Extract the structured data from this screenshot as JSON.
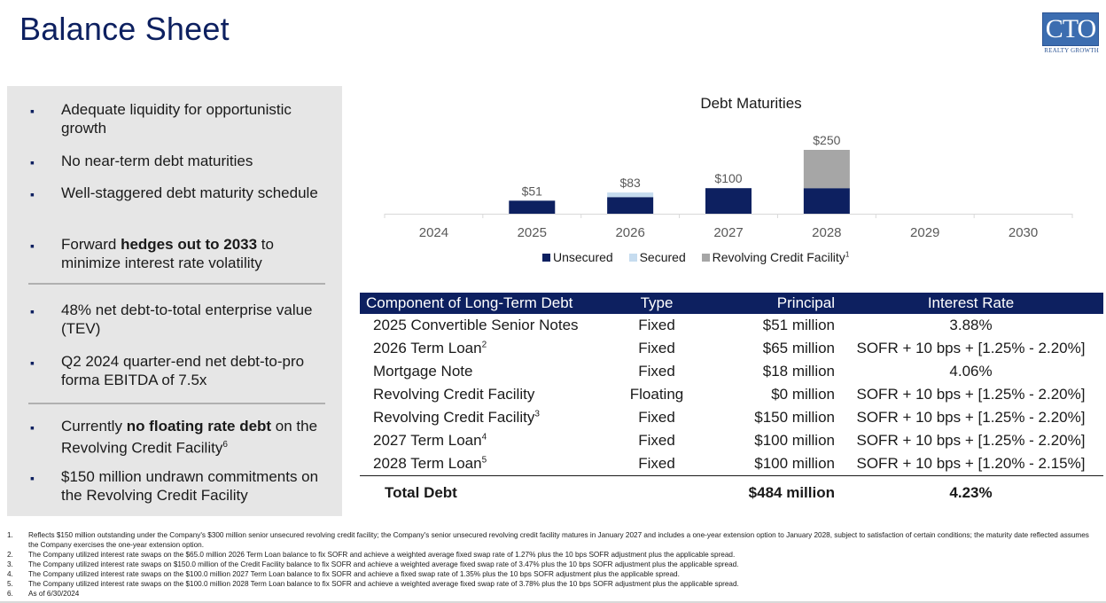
{
  "page": {
    "title": "Balance Sheet"
  },
  "logo": {
    "text": "CTO",
    "subtext": "REALTY GROWTH"
  },
  "bullets": [
    {
      "pre": "Adequate liquidity for  opportunistic growth",
      "bold": "",
      "post": "",
      "sup": ""
    },
    {
      "pre": "No near-term debt maturities",
      "bold": "",
      "post": "",
      "sup": ""
    },
    {
      "pre": "Well-staggered debt maturity schedule",
      "bold": "",
      "post": "",
      "sup": ""
    },
    {
      "pre": "Forward ",
      "bold": "hedges out to 2033",
      "post": " to minimize interest rate volatility",
      "sup": ""
    },
    {
      "pre": "48% net debt-to-total enterprise value (TEV)",
      "bold": "",
      "post": "",
      "sup": ""
    },
    {
      "pre": "Q2 2024 quarter-end net debt-to-pro forma EBITDA of 7.5x",
      "bold": "",
      "post": "",
      "sup": ""
    },
    {
      "pre": "Currently ",
      "bold": "no floating rate debt",
      "post": " on the Revolving Credit Facility",
      "sup": "6"
    },
    {
      "pre": "$150 million undrawn commitments on the Revolving Credit Facility",
      "bold": "",
      "post": "",
      "sup": ""
    }
  ],
  "bullet_marker": "▪",
  "chart_data": {
    "type": "bar",
    "stacked": true,
    "title": "Debt Maturities",
    "categories": [
      "2024",
      "2025",
      "2026",
      "2027",
      "2028",
      "2029",
      "2030"
    ],
    "series": [
      {
        "name": "Unsecured",
        "values": [
          0,
          51,
          65,
          100,
          100,
          0,
          0
        ],
        "color": "#0d2060"
      },
      {
        "name": "Secured",
        "values": [
          0,
          0,
          18,
          0,
          0,
          0,
          0
        ],
        "color": "#c6dcef"
      },
      {
        "name": "Revolving Credit Facility",
        "values": [
          0,
          0,
          0,
          0,
          150,
          0,
          0
        ],
        "color": "#a6a6a6"
      }
    ],
    "total_labels": [
      "",
      "$51",
      "$83",
      "$100",
      "$250",
      "",
      ""
    ],
    "legend_sup": "1",
    "ylim": [
      0,
      250
    ],
    "xlabel": "",
    "ylabel": ""
  },
  "table": {
    "headers": [
      "Component of Long-Term Debt",
      "Type",
      "Principal",
      "Interest Rate"
    ],
    "rows": [
      {
        "name": "2025 Convertible Senior Notes",
        "sup": "",
        "type": "Fixed",
        "principal": "$51 million",
        "rate": "3.88%"
      },
      {
        "name": "2026 Term Loan",
        "sup": "2",
        "type": "Fixed",
        "principal": "$65 million",
        "rate": "SOFR + 10 bps + [1.25% - 2.20%]"
      },
      {
        "name": "Mortgage Note",
        "sup": "",
        "type": "Fixed",
        "principal": "$18 million",
        "rate": "4.06%"
      },
      {
        "name": "Revolving Credit Facility",
        "sup": "",
        "type": "Floating",
        "principal": "$0 million",
        "rate": "SOFR + 10 bps + [1.25% - 2.20%]"
      },
      {
        "name": "Revolving Credit Facility",
        "sup": "3",
        "type": "Fixed",
        "principal": "$150 million",
        "rate": "SOFR + 10 bps + [1.25% - 2.20%]"
      },
      {
        "name": "2027 Term Loan",
        "sup": "4",
        "type": "Fixed",
        "principal": "$100 million",
        "rate": "SOFR + 10 bps + [1.25% - 2.20%]"
      },
      {
        "name": "2028 Term Loan",
        "sup": "5",
        "type": "Fixed",
        "principal": "$100 million",
        "rate": "SOFR + 10 bps + [1.20% - 2.15%]"
      }
    ],
    "total": {
      "name": "Total Debt",
      "principal": "$484 million",
      "rate": "4.23%"
    }
  },
  "footnotes": [
    {
      "num": "1.",
      "text": "Reflects $150 million outstanding under the Company's $300 million senior unsecured revolving credit facility; the Company's senior unsecured revolving credit facility matures in January 2027 and includes a one-year extension option to January 2028, subject to satisfaction of certain conditions; the maturity date reflected assumes the Company exercises the one-year extension option."
    },
    {
      "num": "2.",
      "text": "The Company utilized interest rate swaps on the $65.0 million 2026 Term Loan balance to fix SOFR and achieve a weighted average fixed swap rate of 1.27% plus the 10 bps SOFR adjustment plus the applicable spread."
    },
    {
      "num": "3.",
      "text": "The Company utilized interest rate swaps on $150.0 million of the Credit Facility balance to fix SOFR and achieve a weighted average fixed swap rate of 3.47% plus the 10 bps SOFR adjustment plus the applicable spread."
    },
    {
      "num": "4.",
      "text": "The Company utilized interest rate swaps on the $100.0 million 2027 Term Loan balance to fix SOFR and achieve a fixed swap rate of 1.35% plus the 10 bps SOFR adjustment plus the applicable spread."
    },
    {
      "num": "5.",
      "text": "The Company utilized interest rate swaps on the $100.0 million 2028 Term Loan balance to fix SOFR and achieve a weighted average fixed swap rate of 3.78% plus the 10 bps SOFR adjustment plus the applicable spread."
    },
    {
      "num": "6.",
      "text": "As of 6/30/2024"
    }
  ]
}
